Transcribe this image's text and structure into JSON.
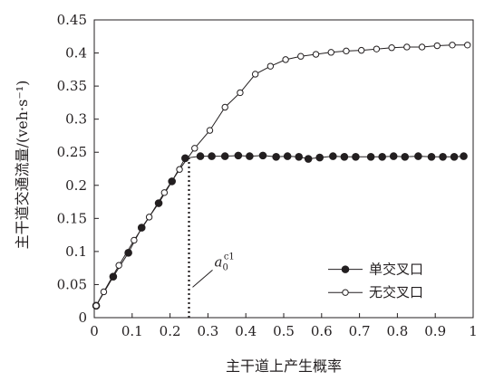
{
  "chart_data": {
    "type": "line",
    "xlabel": "主干道上产生概率",
    "ylabel": "主干道交通流量/(veh·s⁻¹)",
    "xlim": [
      0,
      1
    ],
    "ylim": [
      0,
      0.45
    ],
    "x_ticks": [
      "0",
      "0.1",
      "0.2",
      "0.3",
      "0.4",
      "0.5",
      "0.6",
      "0.7",
      "0.8",
      "0.9",
      "1"
    ],
    "y_ticks": [
      "0",
      "0.05",
      "0.1",
      "0.15",
      "0.2",
      "0.25",
      "0.3",
      "0.35",
      "0.4",
      "0.45"
    ],
    "grid": false,
    "legend_position": "bottom-right",
    "series": [
      {
        "name": "单交叉口",
        "marker": "filled-circle",
        "color": "#231f20",
        "x": [
          0.005,
          0.05,
          0.09,
          0.125,
          0.17,
          0.205,
          0.24,
          0.28,
          0.31,
          0.345,
          0.38,
          0.41,
          0.445,
          0.48,
          0.51,
          0.54,
          0.565,
          0.595,
          0.63,
          0.66,
          0.69,
          0.73,
          0.76,
          0.79,
          0.82,
          0.855,
          0.89,
          0.92,
          0.95,
          0.975
        ],
        "y": [
          0.018,
          0.062,
          0.098,
          0.136,
          0.173,
          0.206,
          0.241,
          0.244,
          0.244,
          0.244,
          0.245,
          0.244,
          0.245,
          0.243,
          0.244,
          0.243,
          0.24,
          0.242,
          0.244,
          0.243,
          0.243,
          0.243,
          0.243,
          0.244,
          0.243,
          0.244,
          0.243,
          0.243,
          0.243,
          0.244
        ]
      },
      {
        "name": "无交叉口",
        "marker": "open-circle",
        "color": "#231f20",
        "x": [
          0.005,
          0.025,
          0.065,
          0.105,
          0.145,
          0.185,
          0.225,
          0.265,
          0.305,
          0.345,
          0.385,
          0.425,
          0.465,
          0.505,
          0.545,
          0.585,
          0.625,
          0.665,
          0.705,
          0.745,
          0.785,
          0.825,
          0.865,
          0.905,
          0.945,
          0.985
        ],
        "y": [
          0.018,
          0.039,
          0.079,
          0.117,
          0.152,
          0.189,
          0.224,
          0.256,
          0.283,
          0.318,
          0.34,
          0.368,
          0.38,
          0.39,
          0.395,
          0.398,
          0.401,
          0.403,
          0.404,
          0.406,
          0.408,
          0.409,
          0.409,
          0.411,
          0.412,
          0.412
        ]
      }
    ],
    "annotation": {
      "base": "a",
      "subscript": "0",
      "superscript": "c1",
      "x": 0.25,
      "line_from_y": 0,
      "line_to_y": 0.241
    }
  }
}
